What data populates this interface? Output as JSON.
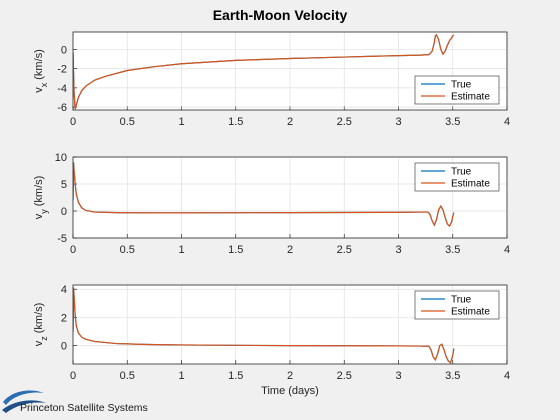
{
  "figure": {
    "title": "Earth-Moon Velocity",
    "xlabel": "Time (days)",
    "logo_text": "Princeton Satellite Systems",
    "colors": {
      "true": "#0072BD",
      "estimate": "#D95319",
      "grid": "#dfdfdf",
      "axis": "#262626",
      "background": "#f0f0f0"
    }
  },
  "chart_data": [
    {
      "type": "line",
      "ylabel": "v_x (km/s)",
      "ylabel_main": "v",
      "ylabel_sub": "x",
      "ylabel_unit": " (km/s)",
      "xlim": [
        0,
        4
      ],
      "ylim": [
        -6.3,
        1.8
      ],
      "xticks": [
        "0",
        "0.5",
        "1",
        "1.5",
        "2",
        "2.5",
        "3",
        "3.5",
        "4"
      ],
      "yticks": [
        "-6",
        "-4",
        "-2",
        "0"
      ],
      "ytick_values": [
        -6,
        -4,
        -2,
        0
      ],
      "legend": {
        "placement": "bottom-right",
        "entries": [
          "True",
          "Estimate"
        ]
      },
      "series": [
        {
          "name": "True",
          "color": "#0072BD",
          "x": [
            0,
            0.01,
            0.02,
            0.03,
            0.05,
            0.08,
            0.12,
            0.2,
            0.3,
            0.5,
            0.75,
            1.0,
            1.5,
            2.0,
            2.5,
            3.0,
            3.2,
            3.28,
            3.31,
            3.33,
            3.34,
            3.35,
            3.37,
            3.39,
            3.41,
            3.43,
            3.45,
            3.47,
            3.49,
            3.5,
            3.51
          ],
          "y": [
            -0.3,
            -4.5,
            -6.2,
            -5.8,
            -5.0,
            -4.3,
            -3.8,
            -3.2,
            -2.8,
            -2.2,
            -1.8,
            -1.5,
            -1.15,
            -0.95,
            -0.8,
            -0.65,
            -0.6,
            -0.55,
            -0.2,
            0.7,
            1.4,
            1.5,
            1.0,
            0.0,
            -0.5,
            -0.2,
            0.4,
            0.9,
            1.2,
            1.4,
            1.5
          ]
        },
        {
          "name": "Estimate",
          "color": "#D95319",
          "x": [
            0,
            0.01,
            0.02,
            0.03,
            0.05,
            0.08,
            0.12,
            0.2,
            0.3,
            0.5,
            0.75,
            1.0,
            1.5,
            2.0,
            2.5,
            3.0,
            3.2,
            3.28,
            3.31,
            3.33,
            3.34,
            3.35,
            3.37,
            3.39,
            3.41,
            3.43,
            3.45,
            3.47,
            3.49,
            3.5,
            3.51
          ],
          "y": [
            -0.3,
            -4.5,
            -6.2,
            -5.8,
            -5.0,
            -4.3,
            -3.8,
            -3.2,
            -2.8,
            -2.2,
            -1.8,
            -1.5,
            -1.15,
            -0.95,
            -0.8,
            -0.65,
            -0.6,
            -0.55,
            -0.2,
            0.7,
            1.4,
            1.5,
            1.0,
            0.0,
            -0.5,
            -0.2,
            0.4,
            0.9,
            1.2,
            1.4,
            1.5
          ]
        }
      ]
    },
    {
      "type": "line",
      "ylabel": "v_y (km/s)",
      "ylabel_main": "v",
      "ylabel_sub": "y",
      "ylabel_unit": " (km/s)",
      "xlim": [
        0,
        4
      ],
      "ylim": [
        -5,
        10
      ],
      "xticks": [
        "0",
        "0.5",
        "1",
        "1.5",
        "2",
        "2.5",
        "3",
        "3.5",
        "4"
      ],
      "yticks": [
        "-5",
        "0",
        "5",
        "10"
      ],
      "ytick_values": [
        -5,
        0,
        5,
        10
      ],
      "legend": {
        "placement": "top-right",
        "entries": [
          "True",
          "Estimate"
        ]
      },
      "series": [
        {
          "name": "True",
          "color": "#0072BD",
          "x": [
            0,
            0.005,
            0.01,
            0.02,
            0.03,
            0.05,
            0.08,
            0.12,
            0.2,
            0.4,
            0.7,
            1.0,
            2.0,
            3.0,
            3.2,
            3.27,
            3.29,
            3.31,
            3.33,
            3.35,
            3.37,
            3.39,
            3.41,
            3.43,
            3.45,
            3.47,
            3.49,
            3.5,
            3.51
          ],
          "y": [
            2.0,
            9.0,
            7.5,
            5.0,
            3.2,
            1.6,
            0.6,
            0.1,
            -0.2,
            -0.3,
            -0.35,
            -0.35,
            -0.3,
            -0.25,
            -0.2,
            -0.2,
            -0.6,
            -1.8,
            -2.6,
            -1.6,
            0.2,
            0.9,
            0.2,
            -1.2,
            -2.4,
            -2.8,
            -2.0,
            -1.0,
            -0.3
          ]
        },
        {
          "name": "Estimate",
          "color": "#D95319",
          "x": [
            0,
            0.005,
            0.01,
            0.02,
            0.03,
            0.05,
            0.08,
            0.12,
            0.2,
            0.4,
            0.7,
            1.0,
            2.0,
            3.0,
            3.2,
            3.27,
            3.29,
            3.31,
            3.33,
            3.35,
            3.37,
            3.39,
            3.41,
            3.43,
            3.45,
            3.47,
            3.49,
            3.5,
            3.51
          ],
          "y": [
            2.0,
            9.0,
            7.5,
            5.0,
            3.2,
            1.6,
            0.6,
            0.1,
            -0.2,
            -0.3,
            -0.35,
            -0.35,
            -0.3,
            -0.25,
            -0.2,
            -0.2,
            -0.6,
            -1.8,
            -2.6,
            -1.6,
            0.2,
            0.9,
            0.2,
            -1.2,
            -2.4,
            -2.8,
            -2.0,
            -1.0,
            -0.3
          ]
        }
      ]
    },
    {
      "type": "line",
      "ylabel": "v_z (km/s)",
      "ylabel_main": "v",
      "ylabel_sub": "z",
      "ylabel_unit": " (km/s)",
      "xlim": [
        0,
        4
      ],
      "ylim": [
        -1.3,
        4.3
      ],
      "xticks": [
        "0",
        "0.5",
        "1",
        "1.5",
        "2",
        "2.5",
        "3",
        "3.5",
        "4"
      ],
      "yticks": [
        "0",
        "2",
        "4"
      ],
      "ytick_values": [
        0,
        2,
        4
      ],
      "legend": {
        "placement": "top-right",
        "entries": [
          "True",
          "Estimate"
        ]
      },
      "series": [
        {
          "name": "True",
          "color": "#0072BD",
          "x": [
            0,
            0.005,
            0.01,
            0.02,
            0.03,
            0.05,
            0.08,
            0.12,
            0.2,
            0.4,
            0.7,
            1.0,
            2.0,
            3.0,
            3.2,
            3.28,
            3.3,
            3.32,
            3.34,
            3.36,
            3.38,
            3.4,
            3.42,
            3.44,
            3.46,
            3.48,
            3.5,
            3.51
          ],
          "y": [
            1.0,
            4.1,
            3.5,
            2.2,
            1.4,
            0.9,
            0.6,
            0.45,
            0.3,
            0.15,
            0.08,
            0.05,
            0.0,
            -0.02,
            -0.03,
            -0.04,
            -0.3,
            -0.8,
            -1.0,
            -0.6,
            0.0,
            0.1,
            -0.3,
            -0.8,
            -1.1,
            -1.2,
            -0.7,
            -0.2
          ]
        },
        {
          "name": "Estimate",
          "color": "#D95319",
          "x": [
            0,
            0.005,
            0.01,
            0.02,
            0.03,
            0.05,
            0.08,
            0.12,
            0.2,
            0.4,
            0.7,
            1.0,
            2.0,
            3.0,
            3.2,
            3.28,
            3.3,
            3.32,
            3.34,
            3.36,
            3.38,
            3.4,
            3.42,
            3.44,
            3.46,
            3.48,
            3.5,
            3.51
          ],
          "y": [
            1.0,
            4.1,
            3.5,
            2.2,
            1.4,
            0.9,
            0.6,
            0.45,
            0.3,
            0.15,
            0.08,
            0.05,
            0.0,
            -0.02,
            -0.03,
            -0.04,
            -0.3,
            -0.8,
            -1.0,
            -0.6,
            0.0,
            0.1,
            -0.3,
            -0.8,
            -1.1,
            -1.2,
            -0.7,
            -0.2
          ]
        }
      ]
    }
  ]
}
